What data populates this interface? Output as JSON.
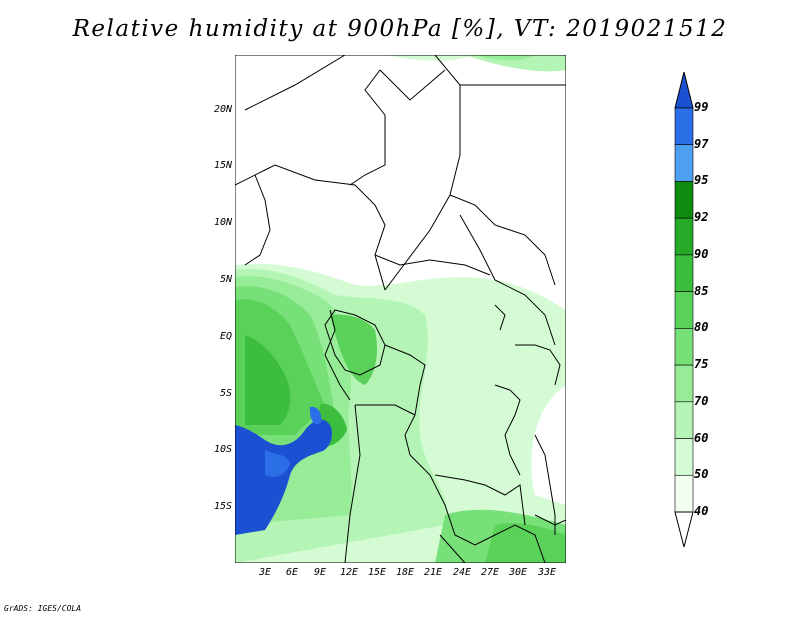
{
  "title": "Relative humidity at 900hPa [%], VT: 2019021512",
  "footer": "GrADS: IGES/COLA",
  "lat_labels": [
    "20N",
    "15N",
    "10N",
    "5N",
    "EQ",
    "5S",
    "10S",
    "15S"
  ],
  "lon_labels": [
    "3E",
    "6E",
    "9E",
    "12E",
    "15E",
    "18E",
    "21E",
    "24E",
    "27E",
    "30E",
    "33E"
  ],
  "colorbar": {
    "levels": [
      "99",
      "97",
      "95",
      "92",
      "90",
      "85",
      "80",
      "75",
      "70",
      "60",
      "50",
      "40"
    ],
    "colors": [
      "#1c50d2",
      "#2a6fe6",
      "#4da0f0",
      "#0e8b0e",
      "#27a827",
      "#3dbd3d",
      "#5ad25a",
      "#78e078",
      "#97ed97",
      "#b4f4b4",
      "#d4fbd4",
      "#f0fff0"
    ]
  }
}
